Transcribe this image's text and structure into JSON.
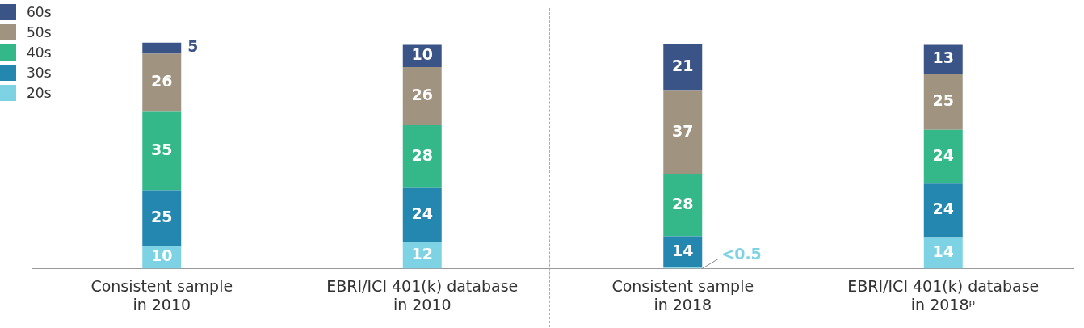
{
  "chart_data": {
    "type": "bar",
    "stacked": true,
    "legend": "top left",
    "categories": [
      "Consistent sample\nin 2010",
      "EBRI/ICI 401(k) database\nin 2010",
      "Consistent sample\nin 2018",
      "EBRI/ICI 401(k) database\nin 2018ᵖ"
    ],
    "series": [
      {
        "name": "20s",
        "color": "#7dd3e3",
        "values": [
          10,
          12,
          0.4,
          14
        ],
        "value_labels": [
          "10",
          "12",
          "<0.5",
          "14"
        ]
      },
      {
        "name": "30s",
        "color": "#2487b0",
        "values": [
          25,
          24,
          14,
          24
        ],
        "value_labels": [
          "25",
          "24",
          "14",
          "24"
        ]
      },
      {
        "name": "40s",
        "color": "#34b88a",
        "values": [
          35,
          28,
          28,
          24
        ],
        "value_labels": [
          "35",
          "28",
          "28",
          "24"
        ]
      },
      {
        "name": "50s",
        "color": "#a09480",
        "values": [
          26,
          26,
          37,
          25
        ],
        "value_labels": [
          "26",
          "26",
          "37",
          "25"
        ]
      },
      {
        "name": "60s",
        "color": "#3b5488",
        "values": [
          5,
          10,
          21,
          13
        ],
        "value_labels": [
          "5",
          "10",
          "21",
          "13"
        ]
      }
    ]
  }
}
